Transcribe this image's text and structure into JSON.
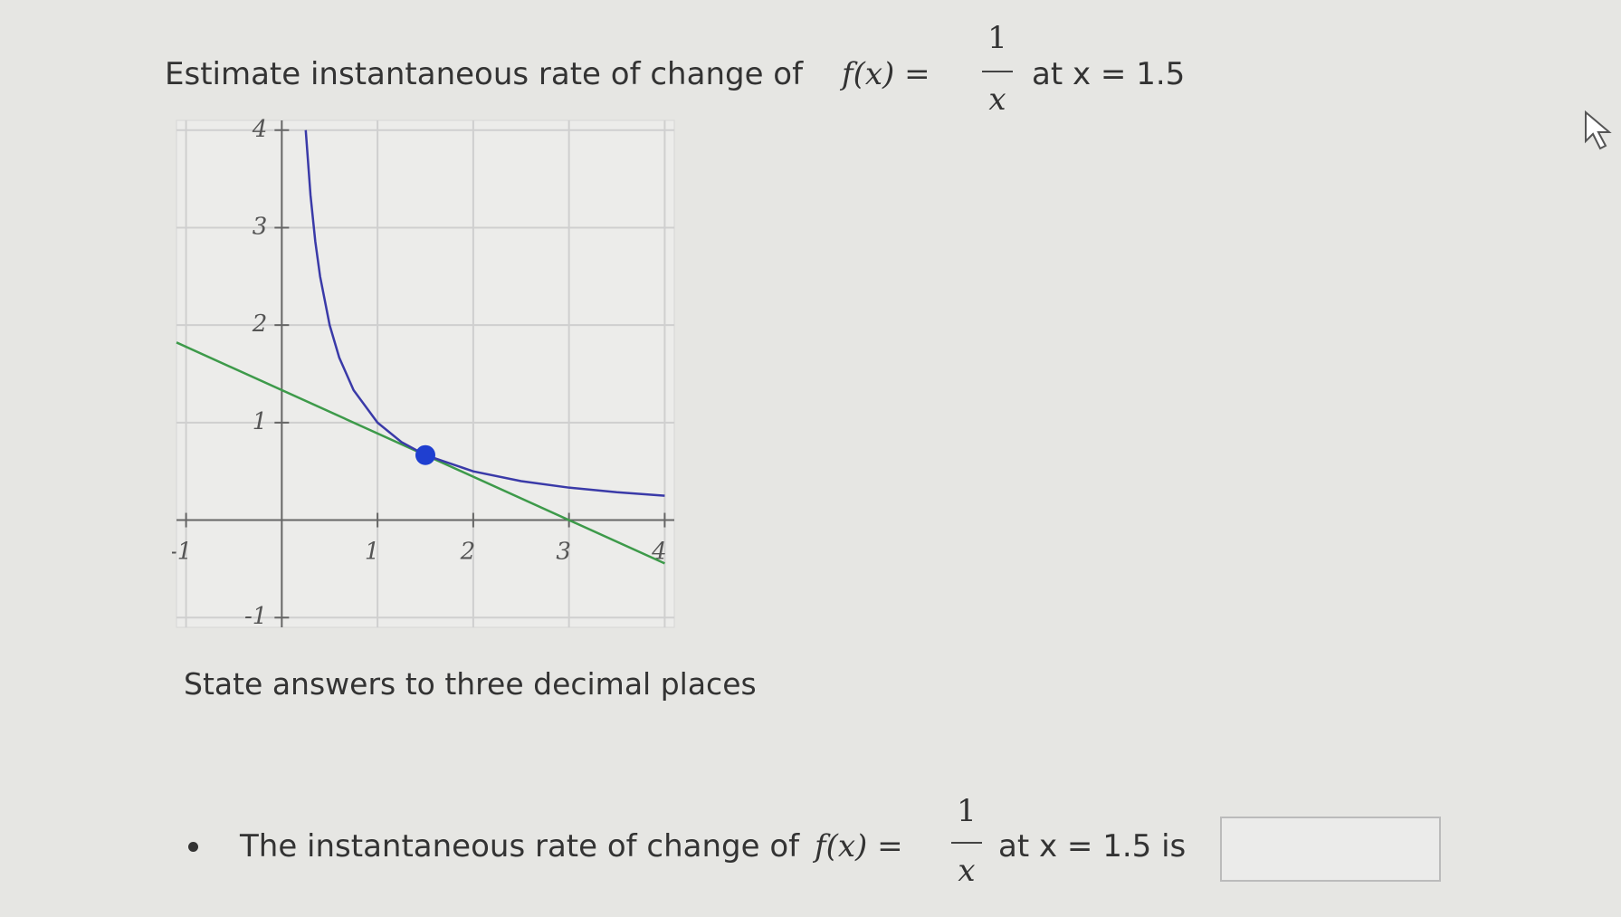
{
  "question": {
    "prefix": "Estimate instantaneous rate of change of",
    "function": "f(x) =",
    "numerator": "1",
    "denominator": "x",
    "suffix": "at x = 1.5"
  },
  "graph": {
    "xlim": [
      -1.1,
      4.1
    ],
    "ylim": [
      -1.1,
      4.1
    ],
    "xticks": [
      -1,
      1,
      2,
      3,
      4
    ],
    "yticks": [
      -1,
      1,
      2,
      3,
      4
    ],
    "curve": {
      "color": "#3a3aa8",
      "x": [
        0.25,
        0.3,
        0.35,
        0.4,
        0.5,
        0.6,
        0.75,
        1,
        1.25,
        1.5,
        2,
        2.5,
        3,
        3.5,
        4
      ],
      "y": [
        4,
        3.333,
        2.857,
        2.5,
        2,
        1.667,
        1.333,
        1,
        0.8,
        0.667,
        0.5,
        0.4,
        0.333,
        0.286,
        0.25
      ]
    },
    "tangent": {
      "color": "#3d9a4a",
      "x": [
        -1.1,
        4
      ],
      "y": [
        1.822,
        -0.444
      ]
    },
    "point": {
      "color": "#1f3fd0",
      "x": 1.5,
      "y": 0.667
    }
  },
  "instruction": "State answers to three decimal places",
  "answer": {
    "prefix": "The instantaneous rate of change of",
    "function": "f(x) =",
    "numerator": "1",
    "denominator": "x",
    "suffix": "at x = 1.5 is"
  }
}
